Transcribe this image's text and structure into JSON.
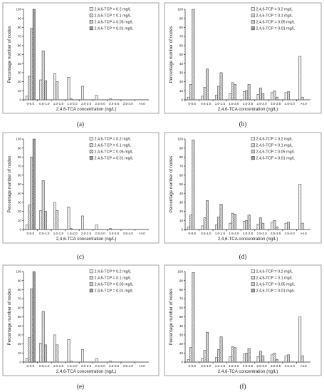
{
  "figure": {
    "background": "#ffffff"
  },
  "chart_data": [
    {
      "label": "(a)",
      "type": "bar",
      "xlabel": "2,4,6-TCA concentration (ng/L)",
      "ylabel": "Percentage number of nodes",
      "ylim": [
        0,
        100
      ],
      "yticks": [
        0,
        10,
        20,
        30,
        40,
        50,
        60,
        70,
        80,
        90,
        100
      ],
      "legend_position": "top-right",
      "categories": [
        "0-0.5",
        "0.5-1.0",
        "1.0-1.5",
        "1.5-2.0",
        "2.0-2.5",
        "2.5-3.0",
        "3.0-3.5",
        "3.5-4.0",
        ">4.0"
      ],
      "series": [
        {
          "name": "2,4,6-TCP = 0.2 mg/L",
          "values": [
            4,
            22,
            29,
            25,
            15,
            5,
            1,
            0,
            0
          ]
        },
        {
          "name": "2,4,6-TCP = 0.1 mg/L",
          "values": [
            26,
            54,
            20,
            1,
            0,
            0,
            0,
            0,
            0
          ]
        },
        {
          "name": "2,4,6-TCP = 0.05 mg/L",
          "values": [
            79,
            21,
            0,
            0,
            0,
            0,
            0,
            0,
            0
          ]
        },
        {
          "name": "2,4,6-TCP = 0.01 mg/L",
          "values": [
            100,
            0,
            0,
            0,
            0,
            0,
            0,
            0,
            0
          ]
        }
      ]
    },
    {
      "label": "(b)",
      "type": "bar",
      "xlabel": "2,4,6-TCA concentration (ng/L)",
      "ylabel": "Percentage number of nodes",
      "ylim": [
        0,
        100
      ],
      "yticks": [
        0,
        10,
        20,
        30,
        40,
        50,
        60,
        70,
        80,
        90,
        100
      ],
      "legend_position": "top-right",
      "categories": [
        "0-0.5",
        "0.5-1.0",
        "1.0-1.5",
        "1.5-2.0",
        "2.0-2.5",
        "2.5-3.0",
        "3.0-3.5",
        "3.5-4.0",
        ">4.0"
      ],
      "series": [
        {
          "name": "2,4,6-TCP = 0.2 mg/L",
          "values": [
            3,
            4,
            5,
            7,
            9,
            6,
            8,
            8,
            48
          ]
        },
        {
          "name": "2,4,6-TCP = 0.1 mg/L",
          "values": [
            17,
            14,
            15,
            19,
            10,
            13,
            10,
            9,
            3
          ]
        },
        {
          "name": "2,4,6-TCP = 0.05 mg/L",
          "values": [
            100,
            34,
            30,
            17,
            17,
            7,
            3,
            0,
            0
          ]
        },
        {
          "name": "2,4,6-TCP = 0.01 mg/L",
          "values": [
            0,
            0,
            0,
            0,
            0,
            0,
            0,
            0,
            0
          ]
        }
      ]
    },
    {
      "label": "(c)",
      "type": "bar",
      "xlabel": "2,4,6-TCA concentration (ng/L)",
      "ylabel": "Percentage number of nodes",
      "ylim": [
        0,
        100
      ],
      "yticks": [
        0,
        10,
        20,
        30,
        40,
        50,
        60,
        70,
        80,
        90,
        100
      ],
      "legend_position": "top-right",
      "categories": [
        "0-0.5",
        "0.5-1.0",
        "1.0-1.5",
        "1.5-2.0",
        "2.0-2.5",
        "2.5-3.0",
        "3.0-3.5",
        "3.5-4.0",
        ">4.0"
      ],
      "series": [
        {
          "name": "2,4,6-TCP = 0.2 mg/L",
          "values": [
            5,
            21,
            30,
            25,
            15,
            5,
            1,
            0,
            0
          ]
        },
        {
          "name": "2,4,6-TCP = 0.1 mg/L",
          "values": [
            27,
            54,
            21,
            1,
            0,
            0,
            0,
            0,
            0
          ]
        },
        {
          "name": "2,4,6-TCP = 0.05 mg/L",
          "values": [
            80,
            20,
            0,
            0,
            0,
            0,
            0,
            0,
            0
          ]
        },
        {
          "name": "2,4,6-TCP = 0.01 mg/L",
          "values": [
            100,
            0,
            0,
            0,
            0,
            0,
            0,
            0,
            0
          ]
        }
      ]
    },
    {
      "label": "(d)",
      "type": "bar",
      "xlabel": "2,4,6-TCA concentration (ng/L)",
      "ylabel": "Percentage number of nodes",
      "ylim": [
        0,
        100
      ],
      "yticks": [
        0,
        10,
        20,
        30,
        40,
        50,
        60,
        70,
        80,
        90,
        100
      ],
      "legend_position": "top-right",
      "categories": [
        "0-0.5",
        "0.5-1.0",
        "1.0-1.5",
        "1.5-2.0",
        "2.0-2.5",
        "2.5-3.0",
        "3.0-3.5",
        "3.5-4.0",
        ">4.0"
      ],
      "series": [
        {
          "name": "2,4,6-TCP = 0.2 mg/L",
          "values": [
            3,
            4,
            5,
            7,
            9,
            6,
            8,
            7,
            50
          ]
        },
        {
          "name": "2,4,6-TCP = 0.1 mg/L",
          "values": [
            16,
            13,
            14,
            18,
            10,
            13,
            10,
            8,
            7
          ]
        },
        {
          "name": "2,4,6-TCP = 0.05 mg/L",
          "values": [
            99,
            32,
            28,
            17,
            16,
            7,
            3,
            0,
            0
          ]
        },
        {
          "name": "2,4,6-TCP = 0.01 mg/L",
          "values": [
            0,
            0,
            0,
            0,
            0,
            0,
            0,
            0,
            0
          ]
        }
      ]
    },
    {
      "label": "(e)",
      "type": "bar",
      "xlabel": "2,4,6-TCA concentration (ng/L)",
      "ylabel": "Percentage number of nodes",
      "ylim": [
        0,
        100
      ],
      "yticks": [
        0,
        10,
        20,
        30,
        40,
        50,
        60,
        70,
        80,
        90,
        100
      ],
      "legend_position": "top-right",
      "categories": [
        "0-0.5",
        "0.5-1.0",
        "1.0-1.5",
        "1.5-2.0",
        "2.0-2.5",
        "2.5-3.0",
        "3.0-3.5",
        "3.5-4.0",
        ">4.0"
      ],
      "series": [
        {
          "name": "2,4,6-TCP = 0.2 mg/L",
          "values": [
            4,
            21,
            30,
            25,
            14,
            4,
            1,
            0,
            0
          ]
        },
        {
          "name": "2,4,6-TCP = 0.1 mg/L",
          "values": [
            27,
            56,
            19,
            1,
            0,
            0,
            0,
            0,
            0
          ]
        },
        {
          "name": "2,4,6-TCP = 0.05 mg/L",
          "values": [
            81,
            19,
            0,
            0,
            0,
            0,
            0,
            0,
            0
          ]
        },
        {
          "name": "2,4,6-TCP = 0.01 mg/L",
          "values": [
            100,
            0,
            0,
            0,
            0,
            0,
            0,
            0,
            0
          ]
        }
      ]
    },
    {
      "label": "(f)",
      "type": "bar",
      "xlabel": "2,4,6-TCA concentration (ng/L)",
      "ylabel": "Percentage number of nodes",
      "ylim": [
        0,
        100
      ],
      "yticks": [
        0,
        10,
        20,
        30,
        40,
        50,
        60,
        70,
        80,
        90,
        100
      ],
      "legend_position": "top-right",
      "categories": [
        "0-0.5",
        "0.5-1.0",
        "1.0-1.5",
        "1.5-2.0",
        "2.0-2.5",
        "2.5-3.0",
        "3.0-3.5",
        "3.5-4.0",
        ">4.0"
      ],
      "series": [
        {
          "name": "2,4,6-TCP = 0.2 mg/L",
          "values": [
            3,
            4,
            5,
            6,
            9,
            6,
            8,
            7,
            50
          ]
        },
        {
          "name": "2,4,6-TCP = 0.1 mg/L",
          "values": [
            16,
            13,
            14,
            17,
            10,
            12,
            10,
            8,
            7
          ]
        },
        {
          "name": "2,4,6-TCP = 0.05 mg/L",
          "values": [
            99,
            33,
            28,
            16,
            15,
            7,
            3,
            0,
            0
          ]
        },
        {
          "name": "2,4,6-TCP = 0.01 mg/L",
          "values": [
            0,
            0,
            0,
            0,
            0,
            0,
            0,
            0,
            0
          ]
        }
      ]
    }
  ]
}
